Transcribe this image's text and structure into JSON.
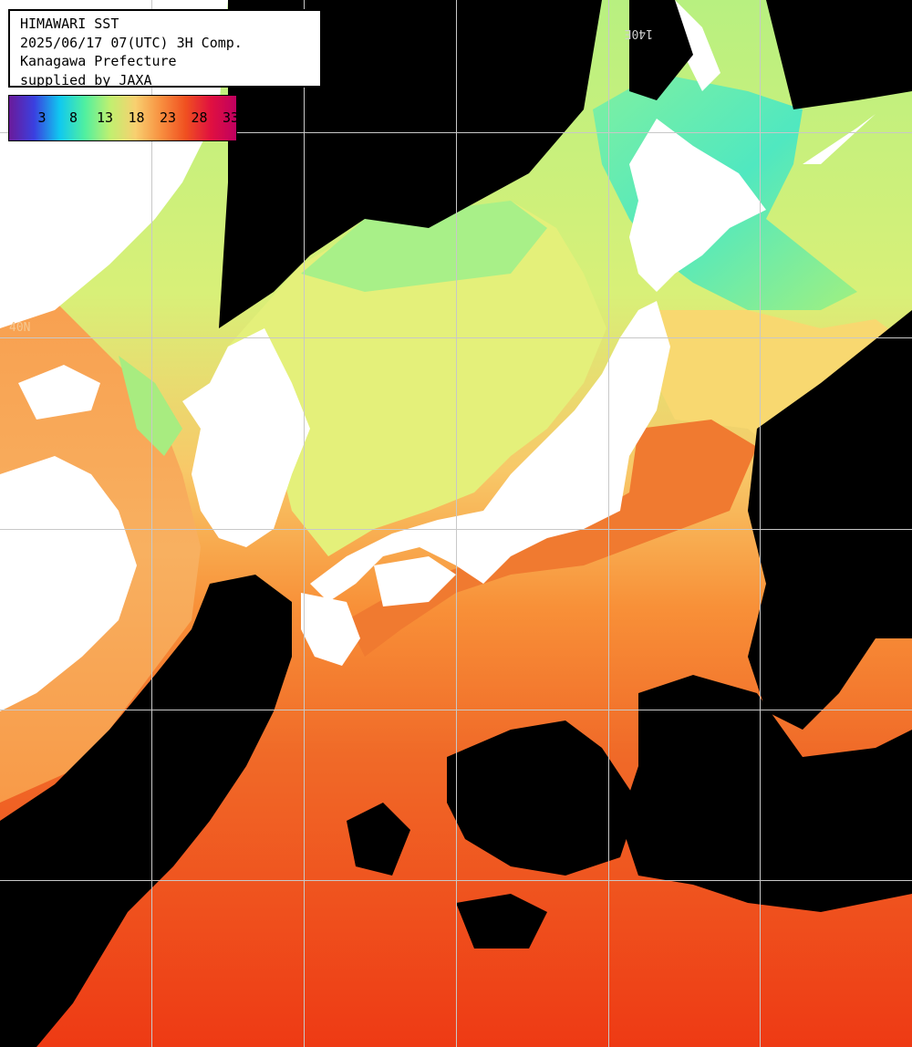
{
  "header": {
    "line1": "HIMAWARI SST",
    "line2": "2025/06/17 07(UTC) 3H Comp.",
    "line3": "Kanagawa Prefecture",
    "line4": "supplied by JAXA"
  },
  "colorbar": {
    "ticks": [
      "3",
      "8",
      "13",
      "18",
      "23",
      "28",
      "33"
    ],
    "stops": [
      "#6a1a9a",
      "#3a40e0",
      "#10c8f0",
      "#50f0a0",
      "#c0f070",
      "#f8d070",
      "#f89040",
      "#f05020",
      "#e01040",
      "#c00060"
    ]
  },
  "grid": {
    "lon_label": "140E",
    "lat_label": "40N"
  },
  "colors": {
    "land": "#ffffff",
    "cloud": "#000000",
    "grid": "#c8c8c8",
    "warm_sea": "#f04a18",
    "mid_sea": "#f88a38",
    "cool_sea": "#d8f070",
    "cold_sea": "#40e8d0"
  }
}
